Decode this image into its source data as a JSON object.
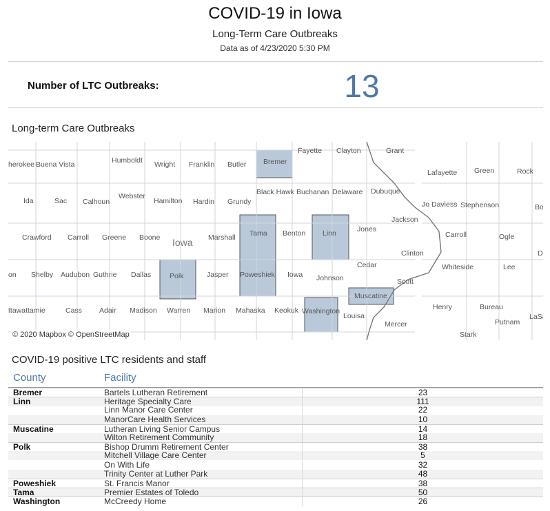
{
  "header": {
    "title": "COVID-19 in Iowa",
    "subtitle": "Long-Term Care Outbreaks",
    "as_of": "Data as of 4/23/2020 5:30 PM"
  },
  "kpi": {
    "label": "Number of LTC Outbreaks:",
    "value": "13"
  },
  "map": {
    "title": "Long-term Care Outbreaks",
    "attribution": "© 2020 Mapbox © OpenStreetMap",
    "state_label": "Iowa",
    "highlight_color": "#b9c9da",
    "labels": [
      "herokee",
      "Buena Vista",
      "Humboldt",
      "Wright",
      "Franklin",
      "Butler",
      "Bremer",
      "Fayette",
      "Clayton",
      "Grant",
      "Lafayette",
      "Green",
      "Rock",
      "Ida",
      "Sac",
      "Calhoun",
      "Webster",
      "Hamilton",
      "Hardin",
      "Grundy",
      "Black Hawk",
      "Buchanan",
      "Delaware",
      "Dubuque",
      "Jo Daviess",
      "Stephenson",
      "Bo",
      "Jackson",
      "Crawford",
      "Carroll",
      "Greene",
      "Boone",
      "Marshall",
      "Tama",
      "Benton",
      "Linn",
      "Jones",
      "Carroll",
      "Ogle",
      "Clinton",
      "De",
      "on",
      "Shelby",
      "Audubon",
      "Guthrie",
      "Dallas",
      "Polk",
      "Jasper",
      "Poweshiek",
      "Iowa",
      "Johnson",
      "Cedar",
      "Whiteside",
      "Lee",
      "Scott",
      "Muscatine",
      "ttawattamie",
      "Cass",
      "Adair",
      "Madison",
      "Warren",
      "Marion",
      "Mahaska",
      "Keokuk",
      "Washington",
      "Louisa",
      "Henry",
      "Bureau",
      "LaSa",
      "Mercer",
      "Putnam",
      "Stark"
    ]
  },
  "table": {
    "title": "COVID-19 positive LTC residents and staff",
    "col_county": "County",
    "col_facility": "Facility",
    "rows": [
      {
        "county": "Bremer",
        "facility": "Bartels Lutheran Retirement",
        "count": "23"
      },
      {
        "county": "Linn",
        "facility": "Heritage Specialty Care",
        "count": "111"
      },
      {
        "county": "",
        "facility": "Linn Manor Care Center",
        "count": "22"
      },
      {
        "county": "",
        "facility": "ManorCare Health Services",
        "count": "10"
      },
      {
        "county": "Muscatine",
        "facility": "Lutheran Living Senior Campus",
        "count": "14"
      },
      {
        "county": "",
        "facility": "Wilton Retirement Community",
        "count": "18"
      },
      {
        "county": "Polk",
        "facility": "Bishop Drumm Retirement Center",
        "count": "38"
      },
      {
        "county": "",
        "facility": "Mitchell Village Care Center",
        "count": "5"
      },
      {
        "county": "",
        "facility": "On With Life",
        "count": "32"
      },
      {
        "county": "",
        "facility": "Trinity Center at Luther Park",
        "count": "48"
      },
      {
        "county": "Poweshiek",
        "facility": "St. Francis Manor",
        "count": "38"
      },
      {
        "county": "Tama",
        "facility": "Premier Estates of Toledo",
        "count": "50"
      },
      {
        "county": "Washington",
        "facility": "McCreedy Home",
        "count": "26"
      }
    ]
  }
}
